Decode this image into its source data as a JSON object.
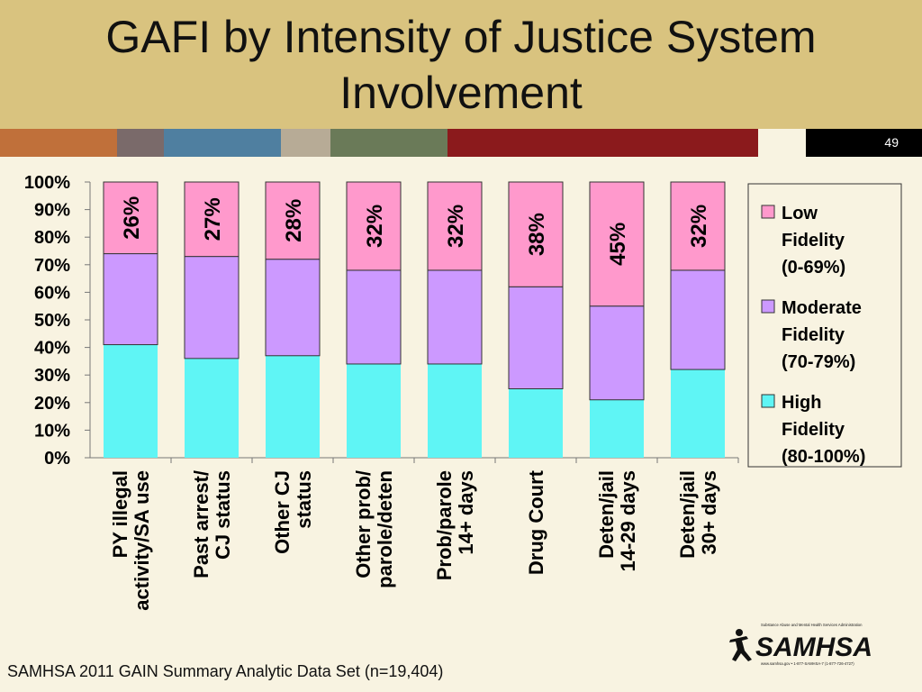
{
  "slide": {
    "title": "GAFI by Intensity of Justice System\nInvolvement",
    "slide_number": "49",
    "source": "SAMHSA 2011 GAIN Summary Analytic Data Set (n=19,404)",
    "logo_text": "SAMHSA",
    "logo_subtext": "Substance Abuse and Mental Health Services Administration",
    "logo_contact": "www.samhsa.gov • 1-877-SAMHSA-7 (1-877-726-4727)"
  },
  "colors": {
    "title_band": "#d9c37f",
    "stripe": [
      "#c0703a",
      "#7a6a6a",
      "#4f7fa0",
      "#b7ab96",
      "#6a7a58",
      "#8b1a1c",
      "#f8f3e1",
      "#000000"
    ]
  },
  "chart_data": {
    "type": "bar",
    "stacked": true,
    "categories": [
      "PY illegal\nactivity/SA use",
      "Past arrest/\nCJ status",
      "Other CJ\nstatus",
      "Other prob/\nparole/deten",
      "Prob/parole\n14+ days",
      "Drug Court",
      "Deten/jail\n14-29 days",
      "Deten/jail\n30+ days"
    ],
    "series": [
      {
        "name": "High\nFidelity\n(80-100%)",
        "color": "#5ff5f5",
        "values": [
          41,
          36,
          37,
          34,
          34,
          25,
          21,
          32
        ]
      },
      {
        "name": "Moderate\nFidelity\n(70-79%)",
        "color": "#cc99ff",
        "values": [
          33,
          37,
          35,
          34,
          34,
          37,
          34,
          36
        ]
      },
      {
        "name": "Low\nFidelity\n(0-69%)",
        "color": "#ff99cc",
        "values": [
          26,
          27,
          28,
          32,
          32,
          38,
          45,
          32
        ]
      }
    ],
    "data_labels": [
      "26%",
      "27%",
      "28%",
      "32%",
      "32%",
      "38%",
      "45%",
      "32%"
    ],
    "y_ticks": [
      "0%",
      "10%",
      "20%",
      "30%",
      "40%",
      "50%",
      "60%",
      "70%",
      "80%",
      "90%",
      "100%"
    ],
    "ylim": [
      0,
      100
    ],
    "legend_position": "right",
    "grid": false
  }
}
